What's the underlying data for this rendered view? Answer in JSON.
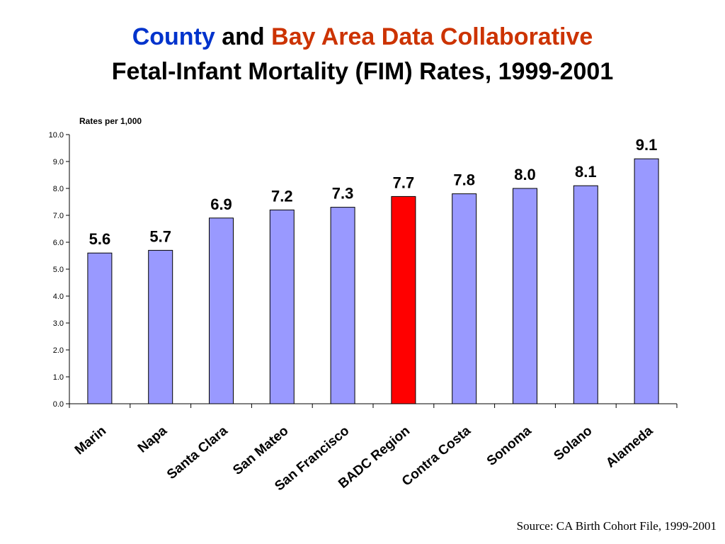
{
  "title": {
    "line1_part1": "County",
    "line1_part2": "and",
    "line1_part3": "Bay Area Data Collaborative",
    "line2": "Fetal-Infant Mortality (FIM) Rates, 1999-2001"
  },
  "source": "Source: CA Birth Cohort File, 1999-2001",
  "colors": {
    "title_blue": "#0033cc",
    "title_red": "#cc3300",
    "bar_default": "#9999ff",
    "bar_highlight": "#ff0000"
  },
  "chart_data": {
    "type": "bar",
    "ylabel": "Rates per 1,000",
    "ylim": [
      0,
      10
    ],
    "yticks": [
      "0.0",
      "1.0",
      "2.0",
      "3.0",
      "4.0",
      "5.0",
      "6.0",
      "7.0",
      "8.0",
      "9.0",
      "10.0"
    ],
    "categories": [
      "Marin",
      "Napa",
      "Santa Clara",
      "San Mateo",
      "San Francisco",
      "BADC Region",
      "Contra Costa",
      "Sonoma",
      "Solano",
      "Alameda"
    ],
    "values": [
      5.6,
      5.7,
      6.9,
      7.2,
      7.3,
      7.7,
      7.8,
      8.0,
      8.1,
      9.1
    ],
    "data_labels": [
      "5.6",
      "5.7",
      "6.9",
      "7.2",
      "7.3",
      "7.7",
      "7.8",
      "8.0",
      "8.1",
      "9.1"
    ],
    "highlight_category": "BADC Region",
    "grid": false,
    "legend": "none"
  }
}
